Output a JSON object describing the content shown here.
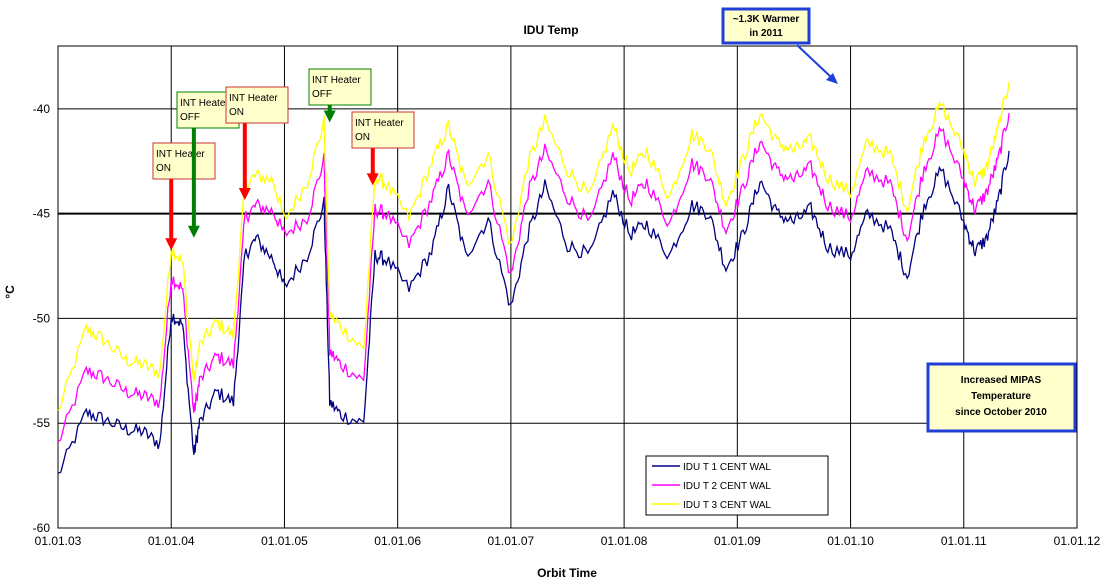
{
  "chart_data": {
    "type": "line",
    "title": "IDU Temp",
    "xlabel": "Orbit Time",
    "ylabel": "°C",
    "x_ticks": [
      "01.01.03",
      "01.01.04",
      "01.01.05",
      "01.01.06",
      "01.01.07",
      "01.01.08",
      "01.01.09",
      "01.01.10",
      "01.01.11",
      "01.01.12"
    ],
    "y_ticks": [
      -40,
      -45,
      -50,
      -55,
      -60
    ],
    "xlim": [
      2003.0,
      2012.0
    ],
    "ylim": [
      -60,
      -37
    ],
    "grid": true,
    "reference_line": -45,
    "legend_position": "bottom-center",
    "x": [
      2003.0,
      2003.25,
      2003.4,
      2003.6,
      2003.75,
      2003.9,
      2004.0,
      2004.1,
      2004.2,
      2004.25,
      2004.4,
      2004.55,
      2004.65,
      2004.75,
      2004.9,
      2005.0,
      2005.2,
      2005.35,
      2005.4,
      2005.5,
      2005.7,
      2005.8,
      2005.9,
      2006.1,
      2006.3,
      2006.45,
      2006.6,
      2006.8,
      2007.0,
      2007.15,
      2007.3,
      2007.5,
      2007.7,
      2007.9,
      2008.05,
      2008.2,
      2008.4,
      2008.6,
      2008.75,
      2008.9,
      2009.05,
      2009.2,
      2009.35,
      2009.5,
      2009.65,
      2009.8,
      2010.0,
      2010.15,
      2010.35,
      2010.5,
      2010.65,
      2010.8,
      2011.0,
      2011.1,
      2011.2,
      2011.3,
      2011.4
    ],
    "series": [
      {
        "name": "IDU T 1 CENT WAL",
        "color": "#000080",
        "values": [
          -57.5,
          -54.5,
          -54.8,
          -55.3,
          -55.4,
          -56.0,
          -49.8,
          -50.3,
          -56.5,
          -55.0,
          -53.5,
          -54.0,
          -47.0,
          -46.2,
          -47.2,
          -48.5,
          -47.0,
          -44.5,
          -54.0,
          -54.6,
          -55.0,
          -47.0,
          -47.2,
          -48.6,
          -46.8,
          -43.8,
          -47.0,
          -45.3,
          -49.5,
          -46.0,
          -43.7,
          -46.5,
          -47.0,
          -44.0,
          -46.0,
          -45.5,
          -47.0,
          -44.6,
          -45.0,
          -47.6,
          -46.0,
          -43.4,
          -45.0,
          -45.4,
          -44.8,
          -46.6,
          -47.0,
          -45.0,
          -45.8,
          -48.0,
          -44.6,
          -42.9,
          -45.4,
          -46.8,
          -46.2,
          -44.5,
          -42.0
        ]
      },
      {
        "name": "IDU T 2 CENT WAL",
        "color": "#ff00ff",
        "values": [
          -56.0,
          -52.5,
          -52.8,
          -53.5,
          -53.7,
          -54.0,
          -48.0,
          -48.6,
          -54.5,
          -53.0,
          -51.8,
          -52.2,
          -45.2,
          -44.6,
          -44.9,
          -46.0,
          -45.2,
          -42.4,
          -51.6,
          -52.2,
          -53.0,
          -44.8,
          -45.0,
          -46.5,
          -44.3,
          -42.2,
          -45.0,
          -43.5,
          -48.0,
          -44.0,
          -42.0,
          -44.2,
          -45.5,
          -42.2,
          -44.4,
          -43.5,
          -45.5,
          -42.6,
          -43.2,
          -45.8,
          -43.8,
          -41.5,
          -43.0,
          -43.4,
          -42.8,
          -44.6,
          -45.2,
          -43.0,
          -43.6,
          -46.2,
          -42.8,
          -41.0,
          -43.4,
          -44.8,
          -44.0,
          -42.5,
          -40.2
        ]
      },
      {
        "name": "IDU T 3 CENT WAL",
        "color": "#ffff00",
        "values": [
          -54.5,
          -50.5,
          -51.0,
          -52.0,
          -52.2,
          -52.6,
          -46.6,
          -47.3,
          -53.0,
          -51.3,
          -50.2,
          -50.8,
          -43.6,
          -43.2,
          -43.4,
          -45.3,
          -43.5,
          -40.6,
          -49.8,
          -50.4,
          -51.5,
          -43.2,
          -43.6,
          -45.2,
          -42.6,
          -40.8,
          -43.6,
          -42.2,
          -46.6,
          -42.6,
          -40.6,
          -42.9,
          -44.2,
          -40.8,
          -43.0,
          -42.0,
          -44.2,
          -41.2,
          -41.8,
          -44.5,
          -42.4,
          -40.2,
          -41.6,
          -42.0,
          -41.5,
          -43.3,
          -44.0,
          -41.6,
          -42.2,
          -44.8,
          -41.4,
          -39.8,
          -42.0,
          -43.5,
          -42.8,
          -41.0,
          -38.7
        ]
      }
    ],
    "annotations": [
      {
        "line1": "INT Heater",
        "line2": "ON",
        "x": 2004.0,
        "arrow_to": -46.7,
        "arrow_color": "#ff0000"
      },
      {
        "line1": "INT Heater",
        "line2": "OFF",
        "x": 2004.2,
        "arrow_to": -46.1,
        "arrow_color": "#008000"
      },
      {
        "line1": "INT Heater",
        "line2": "ON",
        "x": 2004.65,
        "arrow_to": -44.3,
        "arrow_color": "#ff0000"
      },
      {
        "line1": "INT Heater",
        "line2": "OFF",
        "x": 2005.4,
        "arrow_to": -40.6,
        "arrow_color": "#008000"
      },
      {
        "line1": "INT Heater",
        "line2": "ON",
        "x": 2005.78,
        "arrow_to": -43.6,
        "arrow_color": "#ff0000"
      }
    ],
    "callouts": [
      {
        "line1": "~1.3K Warmer",
        "line2": "in 2011"
      },
      {
        "line1": "Increased MIPAS",
        "line2": "Temperature",
        "line3": "since October 2010"
      }
    ]
  }
}
